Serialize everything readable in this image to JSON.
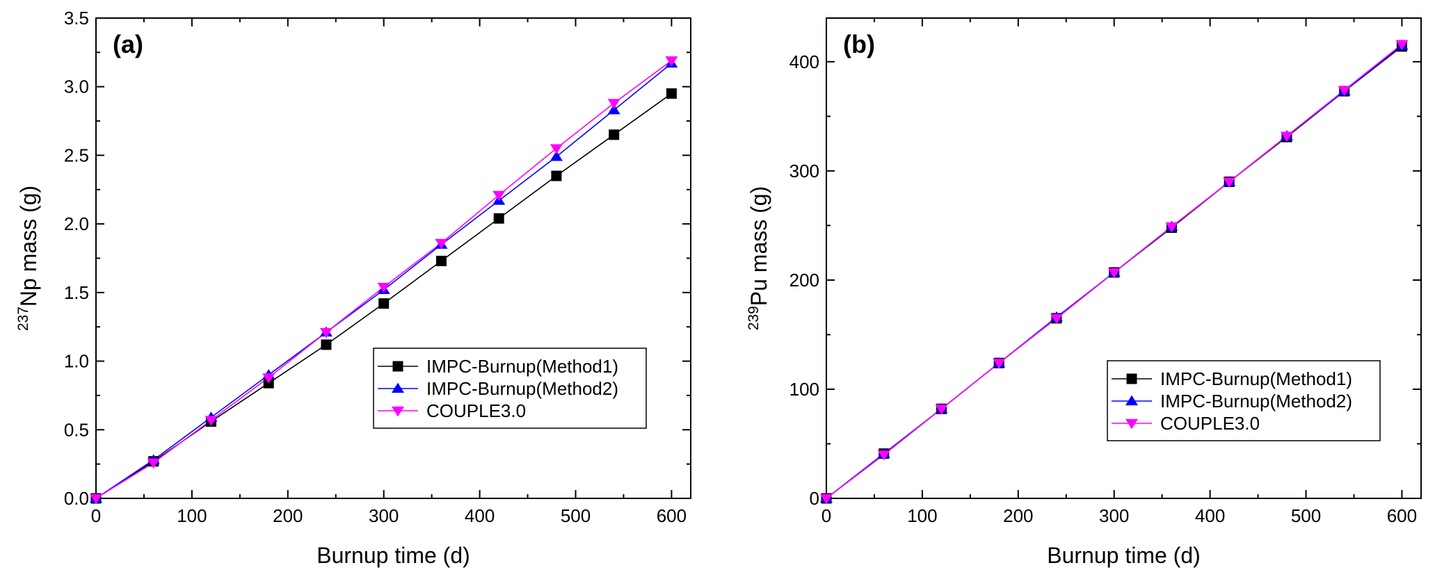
{
  "colors": {
    "method1": "#000000",
    "method2": "#0000ff",
    "couple": "#ff00ff"
  },
  "chart_data": [
    {
      "type": "line",
      "panel": "(a)",
      "xlabel": "Burnup time (d)",
      "ylabel_sup": "237",
      "ylabel_main": "Np mass (g)",
      "xlim": [
        0,
        620
      ],
      "ylim": [
        0,
        3.5
      ],
      "xticks": [
        0,
        100,
        200,
        300,
        400,
        500,
        600
      ],
      "xtick_labels": [
        "0",
        "100",
        "200",
        "300",
        "400",
        "500",
        "600"
      ],
      "yticks": [
        0,
        0.5,
        1.0,
        1.5,
        2.0,
        2.5,
        3.0,
        3.5
      ],
      "ytick_labels": [
        "0.0",
        "0.5",
        "1.0",
        "1.5",
        "2.0",
        "2.5",
        "3.0",
        "3.5"
      ],
      "legend_position": "center-right",
      "x": [
        0,
        60,
        120,
        180,
        240,
        300,
        360,
        420,
        480,
        540,
        600
      ],
      "series": [
        {
          "name": "IMPC-Burnup(Method1)",
          "marker": "square",
          "color_key": "method1",
          "values": [
            0,
            0.27,
            0.56,
            0.84,
            1.12,
            1.42,
            1.73,
            2.04,
            2.35,
            2.65,
            2.95
          ]
        },
        {
          "name": "IMPC-Burnup(Method2)",
          "marker": "triangle-up",
          "color_key": "method2",
          "values": [
            0,
            0.28,
            0.59,
            0.9,
            1.21,
            1.52,
            1.85,
            2.17,
            2.49,
            2.83,
            3.17
          ]
        },
        {
          "name": "COUPLE3.0",
          "marker": "triangle-down",
          "color_key": "couple",
          "values": [
            0,
            0.26,
            0.57,
            0.88,
            1.21,
            1.54,
            1.86,
            2.21,
            2.55,
            2.88,
            3.19
          ]
        }
      ]
    },
    {
      "type": "line",
      "panel": "(b)",
      "xlabel": "Burnup time (d)",
      "ylabel_sup": "239",
      "ylabel_main": "Pu mass (g)",
      "xlim": [
        0,
        620
      ],
      "ylim": [
        0,
        440
      ],
      "xticks": [
        0,
        100,
        200,
        300,
        400,
        500,
        600
      ],
      "xtick_labels": [
        "0",
        "100",
        "200",
        "300",
        "400",
        "500",
        "600"
      ],
      "yticks": [
        0,
        100,
        200,
        300,
        400
      ],
      "ytick_labels": [
        "0",
        "100",
        "200",
        "300",
        "400"
      ],
      "legend_position": "lower-right",
      "x": [
        0,
        60,
        120,
        180,
        240,
        300,
        360,
        420,
        480,
        540,
        600
      ],
      "series": [
        {
          "name": "IMPC-Burnup(Method1)",
          "marker": "square",
          "color_key": "method1",
          "values": [
            0,
            41,
            82,
            124,
            165,
            207,
            248,
            290,
            331,
            373,
            414
          ]
        },
        {
          "name": "IMPC-Burnup(Method2)",
          "marker": "triangle-up",
          "color_key": "method2",
          "values": [
            0,
            41,
            82,
            124,
            166,
            207,
            249,
            290,
            332,
            373,
            415
          ]
        },
        {
          "name": "COUPLE3.0",
          "marker": "triangle-down",
          "color_key": "couple",
          "values": [
            0,
            40,
            82,
            124,
            165,
            207,
            249,
            290,
            332,
            374,
            416
          ]
        }
      ]
    }
  ]
}
